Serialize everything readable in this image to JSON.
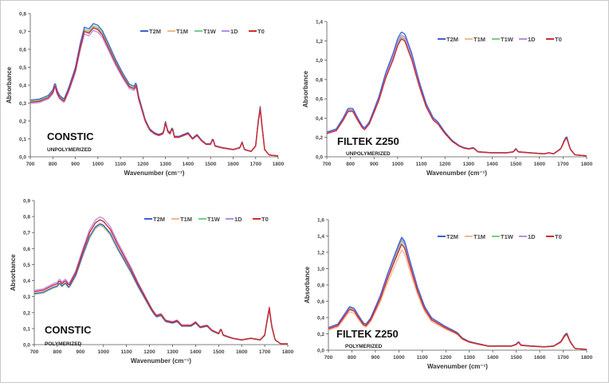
{
  "series_colors": {
    "T2M": "#3f5fcf",
    "T1M": "#f2b98a",
    "T1W": "#6fd08a",
    "1D": "#b48ee8",
    "T0": "#d42a2a"
  },
  "chart_data": [
    {
      "type": "line",
      "title": "CONSTIC",
      "subtitle": "UNPOLYMERIZED",
      "xlabel": "Wavenumber (cm⁻¹)",
      "ylabel": "Absorbance",
      "xlim": [
        700,
        1800
      ],
      "ylim": [
        0,
        0.8
      ],
      "xticks": [
        "700",
        "800",
        "900",
        "1000",
        "1100",
        "1200",
        "1300",
        "1400",
        "1500",
        "1600",
        "1700",
        "1800"
      ],
      "yticks": [
        "0,0",
        "0,1",
        "0,2",
        "0,3",
        "0,4",
        "0,5",
        "0,6",
        "0,7",
        "0,8"
      ],
      "legend": [
        "T2M",
        "T1M",
        "T1W",
        "1D",
        "T0"
      ],
      "base": [
        [
          700,
          0.305
        ],
        [
          740,
          0.31
        ],
        [
          780,
          0.33
        ],
        [
          800,
          0.36
        ],
        [
          810,
          0.4
        ],
        [
          818,
          0.36
        ],
        [
          830,
          0.33
        ],
        [
          850,
          0.31
        ],
        [
          870,
          0.37
        ],
        [
          900,
          0.48
        ],
        [
          920,
          0.6
        ],
        [
          940,
          0.7
        ],
        [
          960,
          0.69
        ],
        [
          980,
          0.72
        ],
        [
          1000,
          0.71
        ],
        [
          1020,
          0.68
        ],
        [
          1050,
          0.6
        ],
        [
          1080,
          0.52
        ],
        [
          1110,
          0.45
        ],
        [
          1140,
          0.39
        ],
        [
          1160,
          0.38
        ],
        [
          1170,
          0.4
        ],
        [
          1180,
          0.33
        ],
        [
          1210,
          0.2
        ],
        [
          1230,
          0.15
        ],
        [
          1250,
          0.13
        ],
        [
          1270,
          0.12
        ],
        [
          1290,
          0.13
        ],
        [
          1300,
          0.19
        ],
        [
          1310,
          0.14
        ],
        [
          1320,
          0.13
        ],
        [
          1330,
          0.16
        ],
        [
          1340,
          0.11
        ],
        [
          1360,
          0.11
        ],
        [
          1380,
          0.12
        ],
        [
          1400,
          0.13
        ],
        [
          1420,
          0.1
        ],
        [
          1440,
          0.12
        ],
        [
          1460,
          0.09
        ],
        [
          1480,
          0.07
        ],
        [
          1500,
          0.07
        ],
        [
          1510,
          0.1
        ],
        [
          1520,
          0.06
        ],
        [
          1550,
          0.05
        ],
        [
          1600,
          0.04
        ],
        [
          1630,
          0.05
        ],
        [
          1640,
          0.08
        ],
        [
          1650,
          0.04
        ],
        [
          1680,
          0.03
        ],
        [
          1700,
          0.06
        ],
        [
          1710,
          0.18
        ],
        [
          1720,
          0.27
        ],
        [
          1730,
          0.15
        ],
        [
          1740,
          0.04
        ],
        [
          1760,
          0.01
        ],
        [
          1800,
          0.005
        ]
      ],
      "series_offsets": {
        "T2M": 0.02,
        "T1M": 0.005,
        "T1W": 0.01,
        "1D": -0.012,
        "T0": 0
      }
    },
    {
      "type": "line",
      "title": "FILTEK Z250",
      "subtitle": "UNPOLYMERIZED",
      "xlabel": "Wavenumber (cm⁻¹)",
      "ylabel": "Absorbance",
      "xlim": [
        700,
        1800
      ],
      "ylim": [
        0,
        1.4
      ],
      "xticks": [
        "700",
        "800",
        "900",
        "1000",
        "1100",
        "1200",
        "1300",
        "1400",
        "1500",
        "1600",
        "1700",
        "1800"
      ],
      "yticks": [
        "0,0",
        "0,2",
        "0,4",
        "0,6",
        "0,8",
        "1,0",
        "1,2",
        "1,4"
      ],
      "legend": [
        "T2M",
        "T1M",
        "T1W",
        "1D",
        "T0"
      ],
      "base": [
        [
          700,
          0.24
        ],
        [
          740,
          0.27
        ],
        [
          770,
          0.38
        ],
        [
          790,
          0.47
        ],
        [
          810,
          0.47
        ],
        [
          830,
          0.38
        ],
        [
          850,
          0.3
        ],
        [
          860,
          0.28
        ],
        [
          880,
          0.34
        ],
        [
          920,
          0.58
        ],
        [
          950,
          0.82
        ],
        [
          980,
          1.0
        ],
        [
          1000,
          1.15
        ],
        [
          1015,
          1.22
        ],
        [
          1030,
          1.2
        ],
        [
          1060,
          1.0
        ],
        [
          1090,
          0.74
        ],
        [
          1120,
          0.52
        ],
        [
          1150,
          0.38
        ],
        [
          1170,
          0.34
        ],
        [
          1200,
          0.24
        ],
        [
          1230,
          0.16
        ],
        [
          1260,
          0.11
        ],
        [
          1280,
          0.09
        ],
        [
          1300,
          0.08
        ],
        [
          1320,
          0.09
        ],
        [
          1340,
          0.05
        ],
        [
          1400,
          0.04
        ],
        [
          1460,
          0.04
        ],
        [
          1490,
          0.05
        ],
        [
          1500,
          0.08
        ],
        [
          1510,
          0.05
        ],
        [
          1560,
          0.04
        ],
        [
          1620,
          0.03
        ],
        [
          1640,
          0.04
        ],
        [
          1660,
          0.03
        ],
        [
          1690,
          0.08
        ],
        [
          1705,
          0.16
        ],
        [
          1715,
          0.2
        ],
        [
          1730,
          0.08
        ],
        [
          1750,
          0.02
        ],
        [
          1800,
          0.01
        ]
      ],
      "series_offsets": {
        "T2M": 0.06,
        "T1M": 0.01,
        "T1W": 0.02,
        "1D": 0.035,
        "T0": 0
      }
    },
    {
      "type": "line",
      "title": "CONSTIC",
      "subtitle": "POLYMERIZED",
      "xlabel": "Wavenumber (cm⁻¹)",
      "ylabel": "Absorbance",
      "xlim": [
        700,
        1800
      ],
      "ylim": [
        0,
        0.9
      ],
      "xticks": [
        "700",
        "800",
        "900",
        "1000",
        "1100",
        "1200",
        "1300",
        "1400",
        "1500",
        "1600",
        "1700",
        "1800"
      ],
      "yticks": [
        "0,0",
        "0,1",
        "0,2",
        "0,3",
        "0,4",
        "0,5",
        "0,6",
        "0,7",
        "0,8",
        "0,9"
      ],
      "legend": [
        "T2M",
        "T1M",
        "T1W",
        "1D",
        "T0"
      ],
      "base": [
        [
          700,
          0.33
        ],
        [
          740,
          0.34
        ],
        [
          780,
          0.37
        ],
        [
          800,
          0.38
        ],
        [
          810,
          0.4
        ],
        [
          820,
          0.38
        ],
        [
          835,
          0.4
        ],
        [
          850,
          0.37
        ],
        [
          880,
          0.45
        ],
        [
          910,
          0.58
        ],
        [
          940,
          0.7
        ],
        [
          965,
          0.76
        ],
        [
          985,
          0.78
        ],
        [
          1000,
          0.77
        ],
        [
          1030,
          0.72
        ],
        [
          1060,
          0.63
        ],
        [
          1090,
          0.55
        ],
        [
          1120,
          0.47
        ],
        [
          1150,
          0.38
        ],
        [
          1180,
          0.3
        ],
        [
          1210,
          0.22
        ],
        [
          1230,
          0.18
        ],
        [
          1250,
          0.19
        ],
        [
          1270,
          0.15
        ],
        [
          1300,
          0.14
        ],
        [
          1320,
          0.15
        ],
        [
          1340,
          0.12
        ],
        [
          1380,
          0.12
        ],
        [
          1400,
          0.14
        ],
        [
          1420,
          0.11
        ],
        [
          1450,
          0.12
        ],
        [
          1470,
          0.09
        ],
        [
          1500,
          0.07
        ],
        [
          1510,
          0.1
        ],
        [
          1520,
          0.06
        ],
        [
          1560,
          0.04
        ],
        [
          1600,
          0.03
        ],
        [
          1640,
          0.04
        ],
        [
          1680,
          0.03
        ],
        [
          1700,
          0.06
        ],
        [
          1710,
          0.15
        ],
        [
          1720,
          0.23
        ],
        [
          1730,
          0.12
        ],
        [
          1745,
          0.03
        ],
        [
          1770,
          0.005
        ],
        [
          1800,
          0.005
        ]
      ],
      "series_offsets": {
        "T2M": -0.02,
        "T1M": -0.03,
        "T1W": -0.025,
        "1D": 0.015,
        "T0": 0
      }
    },
    {
      "type": "line",
      "title": "FILTEK Z250",
      "subtitle": "POLYMERIZED",
      "xlabel": "Wavenumber (cm⁻¹)",
      "ylabel": "Absorbance",
      "xlim": [
        700,
        1800
      ],
      "ylim": [
        0,
        1.6
      ],
      "xticks": [
        "700",
        "800",
        "900",
        "1000",
        "1100",
        "1200",
        "1300",
        "1400",
        "1500",
        "1600",
        "1700",
        "1800"
      ],
      "yticks": [
        "0,0",
        "0,2",
        "0,4",
        "0,6",
        "0,8",
        "1,0",
        "1,2",
        "1,4",
        "1,6"
      ],
      "legend": [
        "T2M",
        "T1M",
        "T1W",
        "1D",
        "T0"
      ],
      "base": [
        [
          700,
          0.26
        ],
        [
          740,
          0.3
        ],
        [
          770,
          0.42
        ],
        [
          790,
          0.5
        ],
        [
          810,
          0.48
        ],
        [
          830,
          0.39
        ],
        [
          850,
          0.31
        ],
        [
          860,
          0.3
        ],
        [
          880,
          0.37
        ],
        [
          920,
          0.62
        ],
        [
          950,
          0.86
        ],
        [
          980,
          1.08
        ],
        [
          1000,
          1.22
        ],
        [
          1012,
          1.3
        ],
        [
          1025,
          1.25
        ],
        [
          1050,
          1.0
        ],
        [
          1080,
          0.72
        ],
        [
          1110,
          0.5
        ],
        [
          1140,
          0.37
        ],
        [
          1170,
          0.32
        ],
        [
          1200,
          0.27
        ],
        [
          1230,
          0.23
        ],
        [
          1250,
          0.2
        ],
        [
          1270,
          0.14
        ],
        [
          1300,
          0.1
        ],
        [
          1330,
          0.08
        ],
        [
          1380,
          0.05
        ],
        [
          1440,
          0.05
        ],
        [
          1480,
          0.05
        ],
        [
          1500,
          0.07
        ],
        [
          1510,
          0.1
        ],
        [
          1520,
          0.06
        ],
        [
          1560,
          0.05
        ],
        [
          1620,
          0.04
        ],
        [
          1660,
          0.05
        ],
        [
          1690,
          0.1
        ],
        [
          1705,
          0.17
        ],
        [
          1715,
          0.2
        ],
        [
          1730,
          0.1
        ],
        [
          1750,
          0.02
        ],
        [
          1800,
          0.01
        ]
      ],
      "series_offsets": {
        "T2M": 0.07,
        "T1M": -0.06,
        "T1W": 0.03,
        "1D": 0.05,
        "T0": 0
      }
    }
  ]
}
